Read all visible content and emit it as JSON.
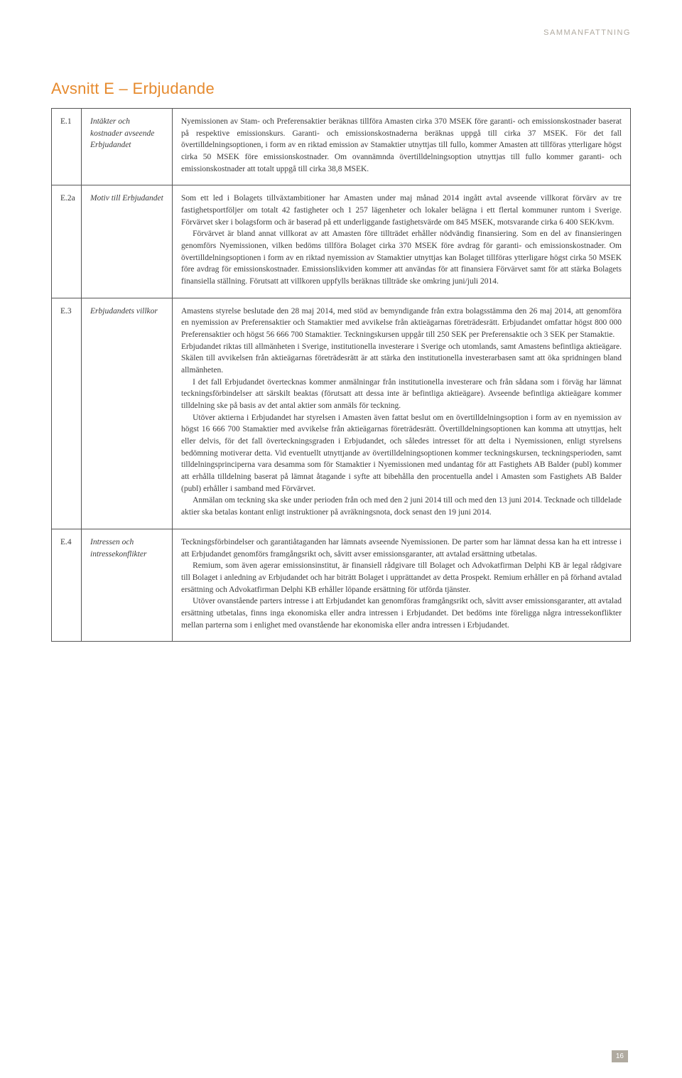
{
  "header": {
    "label": "SAMMANFATTNING"
  },
  "section": {
    "title": "Avsnitt E – Erbjudande"
  },
  "table": {
    "rows": [
      {
        "code": "E.1",
        "label": "Intäkter och kostnader avseende Erbjudandet",
        "paragraphs": [
          "Nyemissionen av Stam- och Preferensaktier beräknas tillföra Amasten cirka 370 MSEK före garanti- och emissionskostnader baserat på respektive emissionskurs. Garanti- och emissionskostnaderna beräknas uppgå till cirka 37 MSEK. För det fall övertilldelningsoptionen, i form av en riktad emission av Stamaktier utnyttjas till fullo, kommer Amasten att tillföras ytterligare högst cirka 50 MSEK före emissionskostnader. Om ovannämnda övertilldelningsoption utnyttjas till fullo kommer garanti- och emissionskostnader att totalt uppgå till cirka 38,8 MSEK."
        ]
      },
      {
        "code": "E.2a",
        "label": "Motiv till Erbjudandet",
        "paragraphs": [
          "Som ett led i Bolagets tillväxtambitioner har Amasten under maj månad 2014 ingått avtal avseende villkorat förvärv av tre fastighetsportföljer om totalt 42 fastigheter och 1 257 lägenheter och lokaler belägna i ett flertal kommuner runtom i Sverige. Förvärvet sker i bolagsform och är baserad på ett underliggande fastighetsvärde om 845 MSEK, motsvarande cirka 6 400 SEK/kvm.",
          "Förvärvet är bland annat villkorat av att Amasten före tillträdet erhåller nödvändig finansiering. Som en del av finansieringen genomförs Nyemissionen, vilken bedöms tillföra Bolaget cirka 370 MSEK före avdrag för garanti- och emissionskostnader. Om övertilldelningsoptionen i form av en riktad nyemission av Stamaktier utnyttjas kan Bolaget tillföras ytterligare högst cirka 50 MSEK före avdrag för emissionskostnader. Emissionslikviden kommer att användas för att finansiera Förvärvet samt för att stärka Bolagets finansiella ställning. Förutsatt att villkoren uppfylls beräknas tillträde ske omkring juni/juli 2014."
        ]
      },
      {
        "code": "E.3",
        "label": "Erbjudandets villkor",
        "paragraphs": [
          "Amastens styrelse beslutade den 28 maj 2014, med stöd av bemyndigande från extra bolagsstämma den 26 maj 2014, att genomföra en nyemission av Preferensaktier och Stamaktier med avvikelse från aktieägarnas företrädesrätt. Erbjudandet omfattar högst 800 000 Preferensaktier och högst 56 666 700 Stamaktier. Teckningskursen uppgår till 250 SEK per Preferensaktie och 3 SEK per Stamaktie.",
          "Erbjudandet riktas till allmänheten i Sverige, institutionella investerare i Sverige och utomlands, samt Amastens befintliga aktieägare. Skälen till avvikelsen från aktieägarnas företrädesrätt är att stärka den institutionella investerarbasen samt att öka spridningen bland allmänheten.",
          "I det fall Erbjudandet övertecknas kommer anmälningar från institutionella investerare och från sådana som i förväg har lämnat teckningsförbindelser att särskilt beaktas (förutsatt att dessa inte är befintliga aktieägare). Avseende befintliga aktieägare kommer tilldelning ske på basis av det antal aktier som anmäls för teckning.",
          "Utöver aktierna i Erbjudandet har styrelsen i Amasten även fattat beslut om en övertilldelningsoption i form av en nyemission av högst 16 666 700 Stamaktier med avvikelse från aktieägarnas företrädesrätt. Övertilldelningsoptionen kan komma att utnyttjas, helt eller delvis, för det fall överteckningsgraden i Erbjudandet, och således intresset för att delta i Nyemissionen, enligt styrelsens bedömning motiverar detta. Vid eventuellt utnyttjande av övertilldelningsoptionen kommer teckningskursen, teckningsperioden, samt tilldelningsprinciperna vara desamma som för Stamaktier i Nyemissionen med undantag för att Fastighets AB Balder (publ) kommer att erhålla tilldelning baserat på lämnat åtagande i syfte att bibehålla den procentuella andel i Amasten som Fastighets AB Balder (publ) erhåller i samband med Förvärvet.",
          "Anmälan om teckning ska ske under perioden från och med den 2 juni 2014 till och med den 13 juni 2014. Tecknade och tilldelade aktier ska betalas kontant enligt instruktioner på avräkningsnota, dock senast den 19 juni 2014."
        ],
        "noindent_first_two": true
      },
      {
        "code": "E.4",
        "label": "Intressen och intressekonflikter",
        "paragraphs": [
          "Teckningsförbindelser och garantiåtaganden har lämnats avseende Nyemissionen. De parter som har lämnat dessa kan ha ett intresse i att Erbjudandet genomförs framgångsrikt och, såvitt avser emissionsgaranter, att avtalad ersättning utbetalas.",
          "Remium, som även agerar emissionsinstitut, är finansiell rådgivare till Bolaget och Advokatfirman Delphi KB är legal rådgivare till Bolaget i anledning av Erbjudandet och har biträtt Bolaget i upprättandet av detta Prospekt. Remium erhåller en på förhand avtalad ersättning och Advokatfirman Delphi KB erhåller löpande ersättning för utförda tjänster.",
          "Utöver ovanstående parters intresse i att Erbjudandet kan genomföras framgångsrikt och, såvitt avser emissionsgaranter, att avtalad ersättning utbetalas, finns inga ekonomiska eller andra intressen i Erbjudandet. Det bedöms inte föreligga några intressekonflikter mellan parterna som i enlighet med ovanstående har ekonomiska eller andra intressen i Erbjudandet."
        ]
      }
    ]
  },
  "page_number": "16",
  "colors": {
    "heading": "#e68a2e",
    "header_label": "#b0aaa0",
    "border": "#555555",
    "text": "#3a3a3a",
    "pagebox_bg": "#b0aaa0",
    "pagebox_fg": "#ffffff"
  }
}
